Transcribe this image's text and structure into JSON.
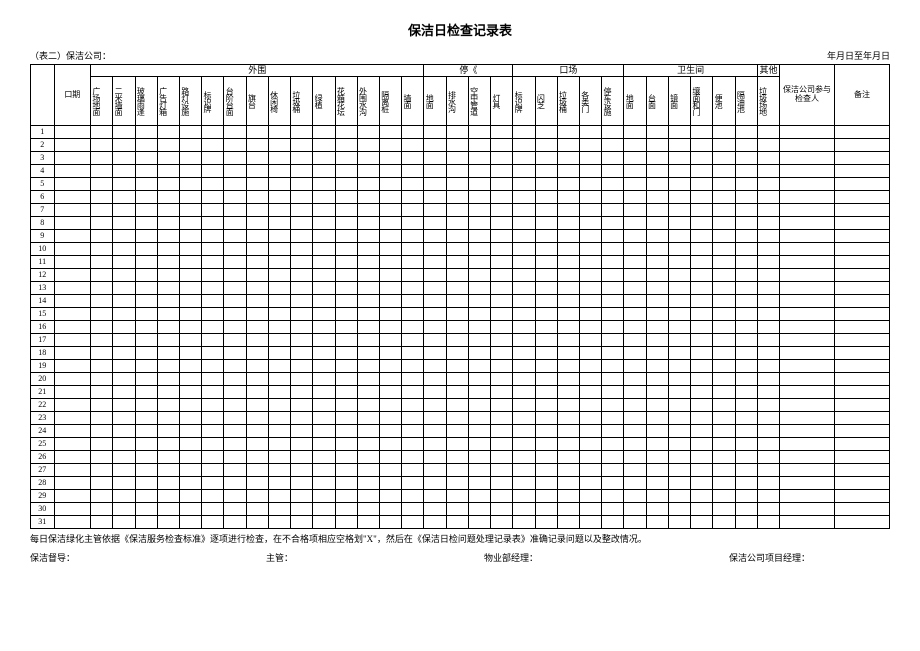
{
  "title": "保洁日检查记录表",
  "meta_left": "（表二）保洁公司：",
  "meta_right": "年月日至年月日",
  "date_header": "口期",
  "groups": [
    {
      "label": "外围",
      "cols": [
        "广场地面",
        "二米墙面",
        "玻璃雨逢",
        "广告灯箱",
        "路灯设施",
        "标识牌",
        "台阶台面",
        "旗台",
        "休闲椅",
        "垃圾桶",
        "绿植",
        "花箱花坛",
        "外围水沟",
        "隔离桩",
        "墙面"
      ]
    },
    {
      "label": "停《",
      "cols": [
        "地面",
        "排水沟",
        "空中管道",
        "灯具"
      ]
    },
    {
      "label": "口场",
      "cols": [
        "标识牌",
        "闪芝",
        "垃圾桶",
        "各类门",
        "停车设施"
      ]
    },
    {
      "label": "卫生间",
      "cols": [
        "地面",
        "台面",
        "镜面",
        "壤面和门",
        "便池",
        "隔油池"
      ]
    },
    {
      "label": "其他",
      "cols": [
        "垃圾场地"
      ]
    }
  ],
  "participant_header": "保洁公司参与检查人",
  "remark_header": "备注",
  "row_count": 31,
  "note_text": "每日保洁绿化主管依据《保洁服务检查标准》逐项进行检查，在不合格项相应空格划\"X\"，然后在《保洁日检问题处理记录表》准确记录问题以及整改情况。",
  "sig_1": "保洁督导：",
  "sig_2": "主管：",
  "sig_3": "物业部经理：",
  "sig_4": "保洁公司项目经理："
}
